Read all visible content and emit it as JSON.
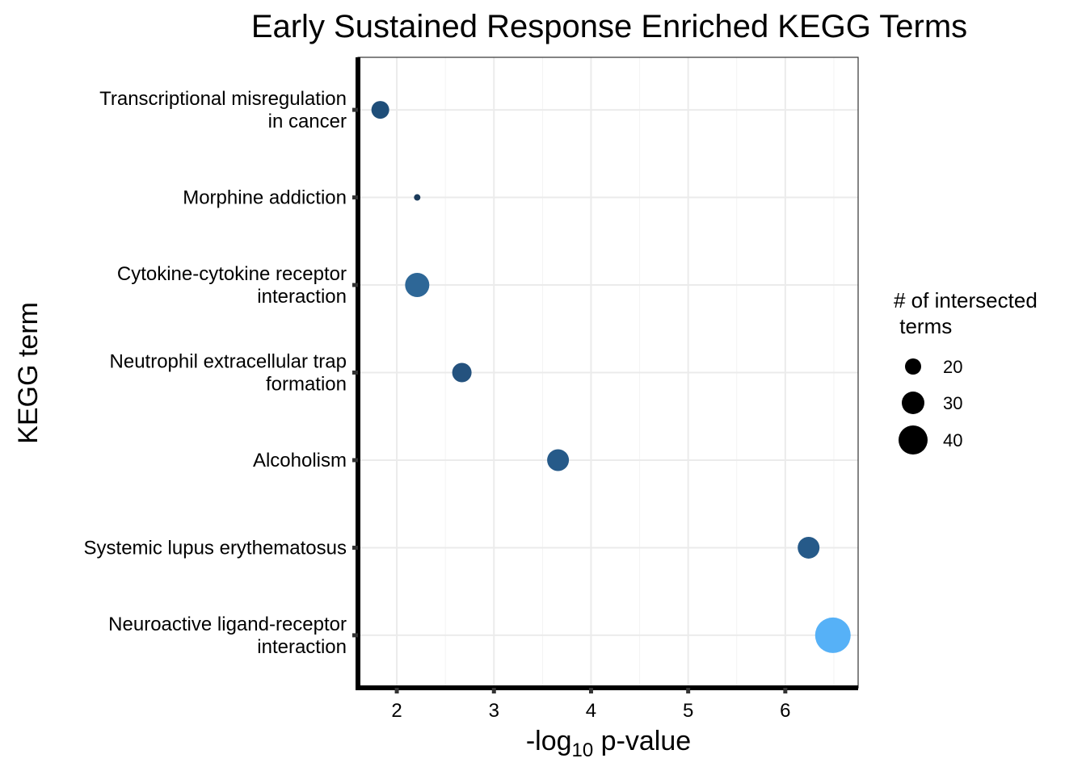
{
  "chart_data": {
    "type": "scatter",
    "title": "Early Sustained Response Enriched KEGG Terms",
    "xlabel_prefix": "-log",
    "xlabel_subscript": "10",
    "xlabel_suffix": " p-value",
    "ylabel": "KEGG term",
    "xlim": [
      1.6,
      6.75
    ],
    "x_ticks": [
      2,
      3,
      4,
      5,
      6
    ],
    "x_minor_ticks": [
      2.5,
      3.5,
      4.5,
      5.5,
      6.5
    ],
    "grid": true,
    "categories": [
      [
        "Transcriptional misregulation",
        "in cancer"
      ],
      [
        "Morphine addiction"
      ],
      [
        "Cytokine-cytokine receptor",
        "interaction"
      ],
      [
        "Neutrophil extracellular trap",
        "formation"
      ],
      [
        "Alcoholism"
      ],
      [
        "Systemic lupus erythematosus"
      ],
      [
        "Neuroactive ligand-receptor",
        "interaction"
      ]
    ],
    "points": [
      {
        "term_index": 0,
        "x": 1.83,
        "size": 22,
        "color": "#1f4e79"
      },
      {
        "term_index": 1,
        "x": 2.21,
        "size": 8,
        "color": "#1a3a5a"
      },
      {
        "term_index": 2,
        "x": 2.21,
        "size": 30,
        "color": "#2e6797"
      },
      {
        "term_index": 3,
        "x": 2.67,
        "size": 24,
        "color": "#24527e"
      },
      {
        "term_index": 4,
        "x": 3.66,
        "size": 27,
        "color": "#265a89"
      },
      {
        "term_index": 5,
        "x": 6.24,
        "size": 27,
        "color": "#265a89"
      },
      {
        "term_index": 6,
        "x": 6.49,
        "size": 44,
        "color": "#56b1f7"
      }
    ],
    "legend": {
      "title_lines": [
        "# of intersected",
        " terms"
      ],
      "placement": "right",
      "items": [
        {
          "label": "20",
          "size": 20
        },
        {
          "label": "30",
          "size": 30
        },
        {
          "label": "40",
          "size": 40
        }
      ]
    }
  }
}
